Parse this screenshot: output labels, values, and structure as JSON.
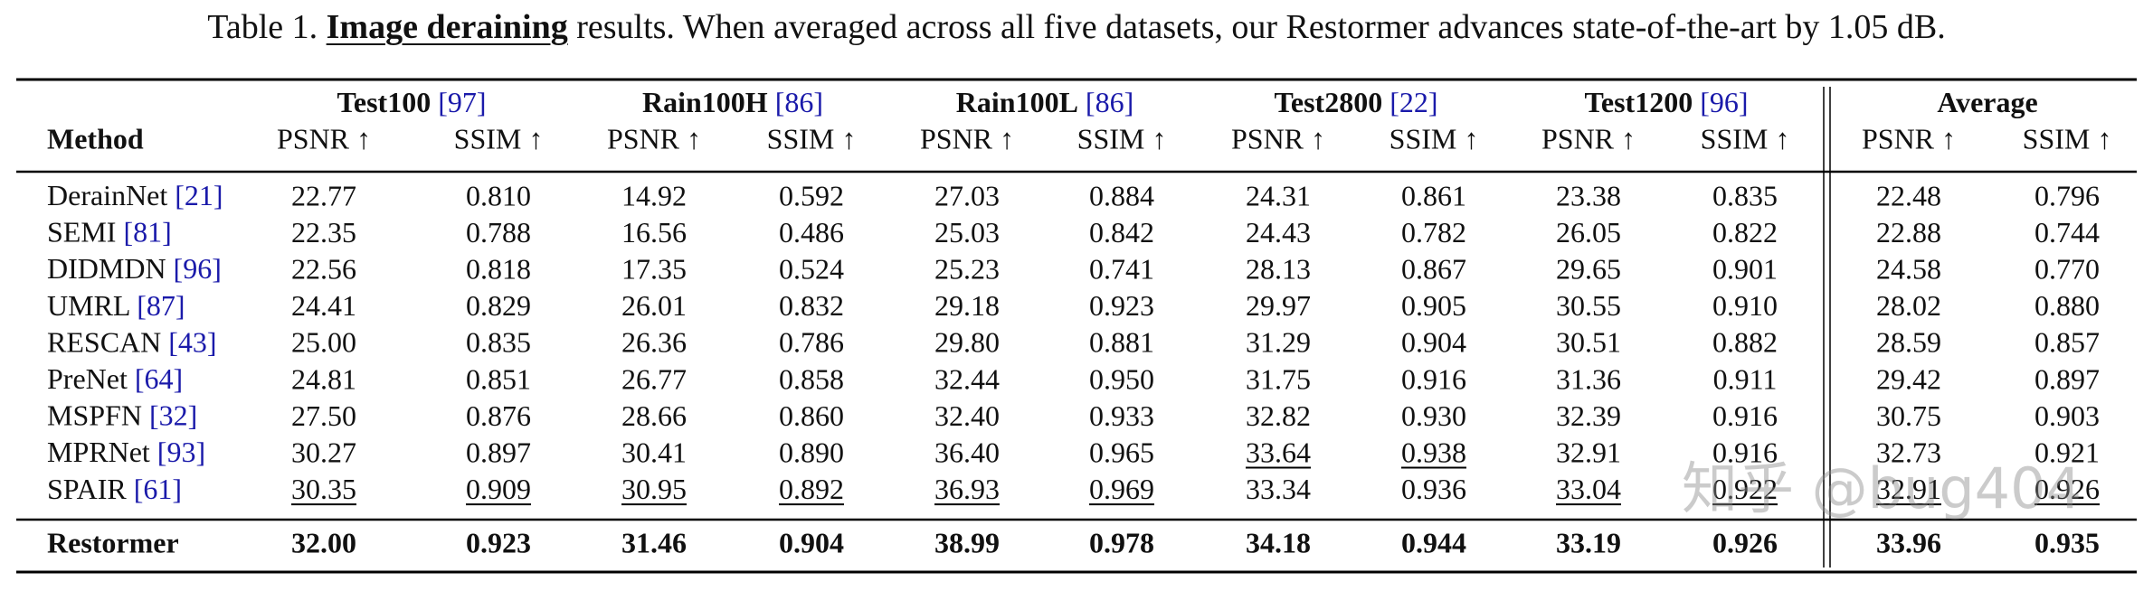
{
  "caption": {
    "label": "Table 1.",
    "highlight": "Image deraining",
    "text": "results. When averaged across all five datasets, our Restormer advances state-of-the-art by 1.05 dB."
  },
  "table": {
    "method_header": "Method",
    "groups": [
      {
        "name": "Test100",
        "ref": "[97]"
      },
      {
        "name": "Rain100H",
        "ref": "[86]"
      },
      {
        "name": "Rain100L",
        "ref": "[86]"
      },
      {
        "name": "Test2800",
        "ref": "[22]"
      },
      {
        "name": "Test1200",
        "ref": "[96]"
      },
      {
        "name": "Average",
        "ref": null
      }
    ],
    "subheaders": [
      "PSNR ↑",
      "SSIM ↑",
      "PSNR ↑",
      "SSIM ↑",
      "PSNR ↑",
      "SSIM ↑",
      "PSNR ↑",
      "SSIM ↑",
      "PSNR ↑",
      "SSIM ↑",
      "PSNR ↑",
      "SSIM ↑"
    ],
    "rows": [
      {
        "method": "DerainNet",
        "ref": "[21]",
        "values": [
          "22.77",
          "0.810",
          "14.92",
          "0.592",
          "27.03",
          "0.884",
          "24.31",
          "0.861",
          "23.38",
          "0.835",
          "22.48",
          "0.796"
        ],
        "underlined": []
      },
      {
        "method": "SEMI",
        "ref": "[81]",
        "values": [
          "22.35",
          "0.788",
          "16.56",
          "0.486",
          "25.03",
          "0.842",
          "24.43",
          "0.782",
          "26.05",
          "0.822",
          "22.88",
          "0.744"
        ],
        "underlined": []
      },
      {
        "method": "DIDMDN",
        "ref": "[96]",
        "values": [
          "22.56",
          "0.818",
          "17.35",
          "0.524",
          "25.23",
          "0.741",
          "28.13",
          "0.867",
          "29.65",
          "0.901",
          "24.58",
          "0.770"
        ],
        "underlined": []
      },
      {
        "method": "UMRL",
        "ref": "[87]",
        "values": [
          "24.41",
          "0.829",
          "26.01",
          "0.832",
          "29.18",
          "0.923",
          "29.97",
          "0.905",
          "30.55",
          "0.910",
          "28.02",
          "0.880"
        ],
        "underlined": []
      },
      {
        "method": "RESCAN",
        "ref": "[43]",
        "values": [
          "25.00",
          "0.835",
          "26.36",
          "0.786",
          "29.80",
          "0.881",
          "31.29",
          "0.904",
          "30.51",
          "0.882",
          "28.59",
          "0.857"
        ],
        "underlined": []
      },
      {
        "method": "PreNet",
        "ref": "[64]",
        "values": [
          "24.81",
          "0.851",
          "26.77",
          "0.858",
          "32.44",
          "0.950",
          "31.75",
          "0.916",
          "31.36",
          "0.911",
          "29.42",
          "0.897"
        ],
        "underlined": []
      },
      {
        "method": "MSPFN",
        "ref": "[32]",
        "values": [
          "27.50",
          "0.876",
          "28.66",
          "0.860",
          "32.40",
          "0.933",
          "32.82",
          "0.930",
          "32.39",
          "0.916",
          "30.75",
          "0.903"
        ],
        "underlined": []
      },
      {
        "method": "MPRNet",
        "ref": "[93]",
        "values": [
          "30.27",
          "0.897",
          "30.41",
          "0.890",
          "36.40",
          "0.965",
          "33.64",
          "0.938",
          "32.91",
          "0.916",
          "32.73",
          "0.921"
        ],
        "underlined": [
          6,
          7
        ]
      },
      {
        "method": "SPAIR",
        "ref": "[61]",
        "values": [
          "30.35",
          "0.909",
          "30.95",
          "0.892",
          "36.93",
          "0.969",
          "33.34",
          "0.936",
          "33.04",
          "0.922",
          "32.91",
          "0.926"
        ],
        "underlined": [
          0,
          1,
          2,
          3,
          4,
          5,
          8,
          9,
          10,
          11
        ]
      }
    ],
    "best_row": {
      "method": "Restormer",
      "values": [
        "32.00",
        "0.923",
        "31.46",
        "0.904",
        "38.99",
        "0.978",
        "34.18",
        "0.944",
        "33.19",
        "0.926",
        "33.96",
        "0.935"
      ]
    }
  },
  "watermark": "知乎 @bug404"
}
